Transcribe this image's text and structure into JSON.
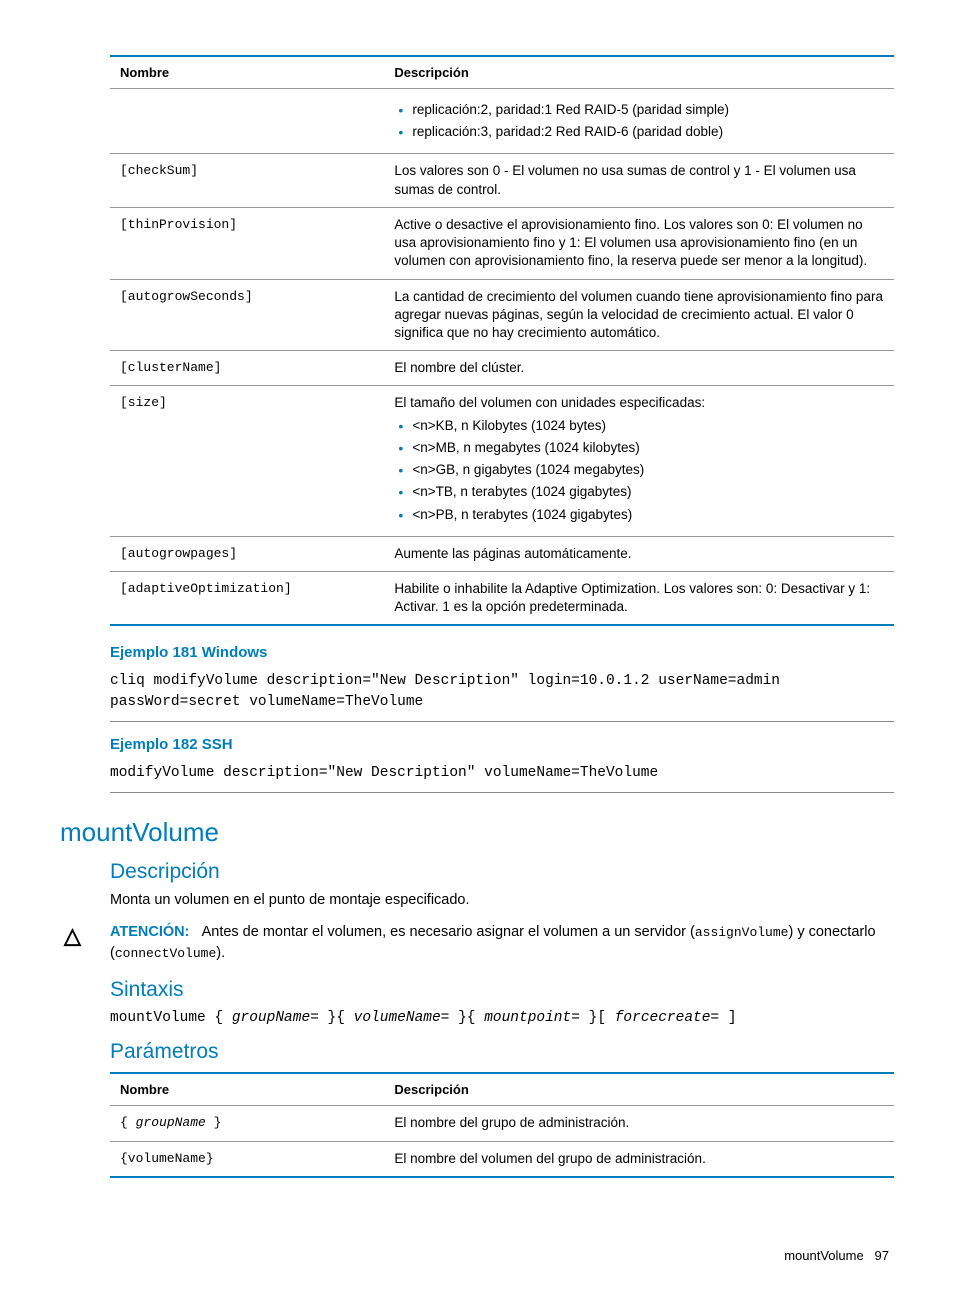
{
  "table1": {
    "headers": [
      "Nombre",
      "Descripción"
    ],
    "rows": [
      {
        "name": "",
        "desc_intro": "",
        "bullets": [
          "replicación:2, paridad:1 Red RAID-5 (paridad simple)",
          "replicación:3, paridad:2 Red RAID-6 (paridad doble)"
        ]
      },
      {
        "name": "[checkSum]",
        "desc": "Los valores son 0 - El volumen no usa sumas de control y 1 - El volumen usa sumas de control."
      },
      {
        "name": "[thinProvision]",
        "desc": "Active o desactive el aprovisionamiento fino. Los valores son 0: El volumen no usa aprovisionamiento fino y 1: El volumen usa aprovisionamiento fino (en un volumen con aprovisionamiento fino, la reserva puede ser menor a la longitud)."
      },
      {
        "name": "[autogrowSeconds]",
        "desc": "La cantidad de crecimiento del volumen cuando tiene aprovisionamiento fino para agregar nuevas páginas, según la velocidad de crecimiento actual. El valor 0 significa que no hay crecimiento automático."
      },
      {
        "name": "[clusterName]",
        "desc": "El nombre del clúster."
      },
      {
        "name": "[size]",
        "desc_intro": "El tamaño del volumen con unidades especificadas:",
        "bullets": [
          "<n>KB, n Kilobytes (1024 bytes)",
          "<n>MB, n megabytes (1024 kilobytes)",
          "<n>GB, n gigabytes (1024 megabytes)",
          "<n>TB, n terabytes (1024 gigabytes)",
          "<n>PB, n terabytes (1024 gigabytes)"
        ]
      },
      {
        "name": "[autogrowpages]",
        "desc": "Aumente las páginas automáticamente."
      },
      {
        "name": "[adaptiveOptimization]",
        "desc": "Habilite o inhabilite la Adaptive Optimization. Los valores son: 0: Desactivar y 1: Activar. 1 es la opción predeterminada."
      }
    ]
  },
  "example1": {
    "title": "Ejemplo 181 Windows",
    "code": "cliq modifyVolume description=\"New Description\" login=10.0.1.2 userName=admin passWord=secret volumeName=TheVolume"
  },
  "example2": {
    "title": "Ejemplo 182 SSH",
    "code": "modifyVolume description=\"New Description\" volumeName=TheVolume"
  },
  "section": {
    "h1": "mountVolume",
    "descripcion_h": "Descripción",
    "descripcion_text": "Monta un volumen en el punto de montaje especificado.",
    "caution_label": "ATENCIÓN:",
    "caution_text_1": "Antes de montar el volumen, es necesario asignar el volumen a un servidor (",
    "caution_code_1": "assignVolume",
    "caution_text_2": ") y conectarlo (",
    "caution_code_2": "connectVolume",
    "caution_text_3": ").",
    "sintaxis_h": "Sintaxis",
    "syntax_cmd": "mountVolume",
    "syntax_parts": [
      {
        "pre": " { ",
        "italic": "groupName=",
        "post": " }"
      },
      {
        "pre": "{ ",
        "italic": "volumeName=",
        "post": " }"
      },
      {
        "pre": "{ ",
        "italic": "mountpoint=",
        "post": " }"
      },
      {
        "pre": "[ ",
        "italic": "forcecreate=",
        "post": " ]"
      }
    ],
    "parametros_h": "Parámetros"
  },
  "table2": {
    "headers": [
      "Nombre",
      "Descripción"
    ],
    "rows": [
      {
        "name_pre": "{ ",
        "name_it": "groupName",
        "name_post": " }",
        "desc": "El nombre del grupo de administración."
      },
      {
        "name_pre": "{",
        "name_it": "volumeName",
        "name_post": "}",
        "italic": false,
        "mono": true,
        "desc": "El nombre del volumen del grupo de administración."
      }
    ]
  },
  "footer": {
    "label": "mountVolume",
    "page": "97"
  }
}
